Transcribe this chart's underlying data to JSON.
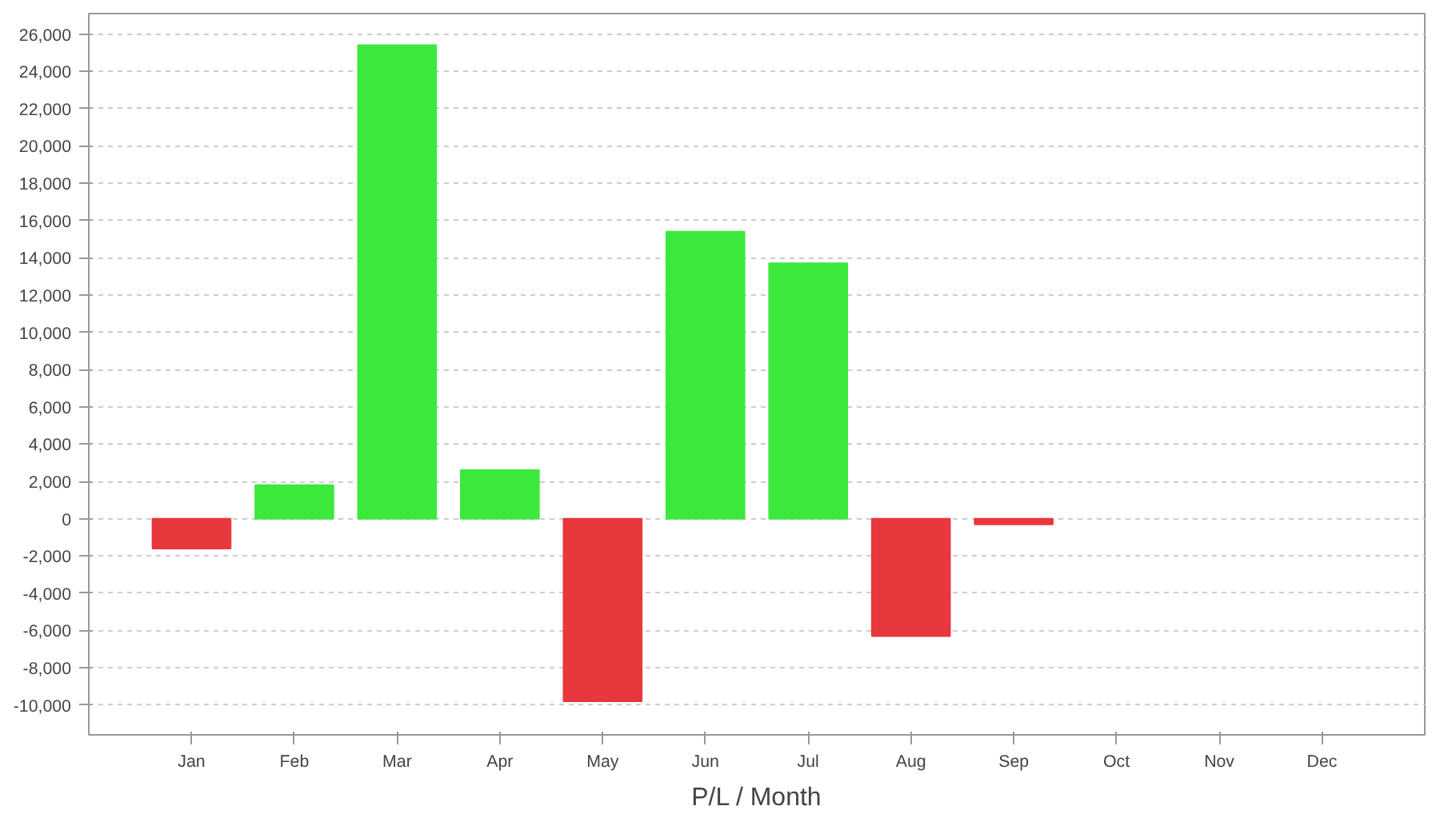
{
  "chart_data": {
    "type": "bar",
    "xlabel": "P/L / Month",
    "categories": [
      "Jan",
      "Feb",
      "Mar",
      "Apr",
      "May",
      "Jun",
      "Jul",
      "Aug",
      "Sep",
      "Oct",
      "Nov",
      "Dec"
    ],
    "values": [
      -1600,
      1800,
      25400,
      2600,
      -9800,
      15400,
      13700,
      -6300,
      -300,
      null,
      null,
      null
    ],
    "colors": [
      "#e8383d",
      "#3de83d",
      "#3de83d",
      "#3de83d",
      "#e8383d",
      "#3de83d",
      "#3de83d",
      "#e8383d",
      "#e8383d",
      "#3de83d",
      "#3de83d",
      "#3de83d"
    ],
    "ylim": [
      -11600,
      27100
    ],
    "yticks": [
      {
        "value": -10000,
        "label": "-10,000"
      },
      {
        "value": -8000,
        "label": "-8,000"
      },
      {
        "value": -6000,
        "label": "-6,000"
      },
      {
        "value": -4000,
        "label": "-4,000"
      },
      {
        "value": -2000,
        "label": "-2,000"
      },
      0,
      {
        "value": 2000,
        "label": "2,000"
      },
      {
        "value": 4000,
        "label": "4,000"
      },
      {
        "value": 6000,
        "label": "6,000"
      },
      {
        "value": 8000,
        "label": "8,000"
      },
      {
        "value": 10000,
        "label": "10,000"
      },
      {
        "value": 12000,
        "label": "12,000"
      },
      {
        "value": 14000,
        "label": "14,000"
      },
      {
        "value": 16000,
        "label": "16,000"
      },
      {
        "value": 18000,
        "label": "18,000"
      },
      {
        "value": 20000,
        "label": "20,000"
      },
      {
        "value": 22000,
        "label": "22,000"
      },
      {
        "value": 24000,
        "label": "24,000"
      },
      {
        "value": 26000,
        "label": "26,000"
      }
    ],
    "grid": "y"
  }
}
